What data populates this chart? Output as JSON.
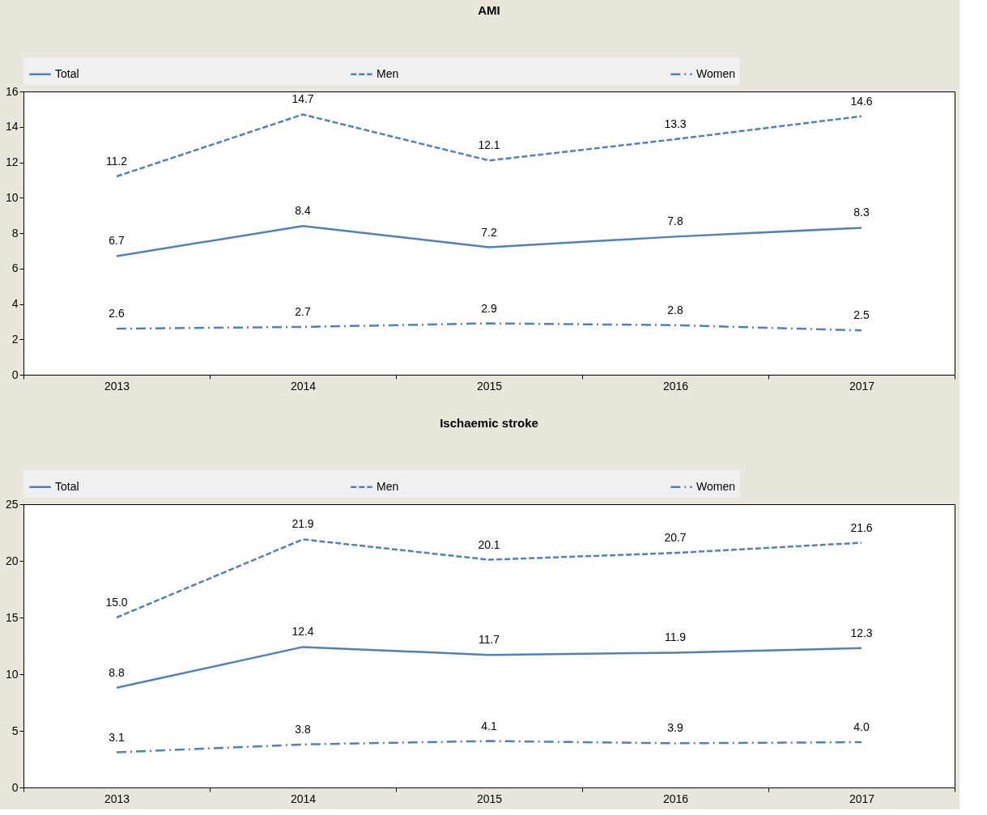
{
  "chart_data": [
    {
      "type": "line",
      "title": "AMI",
      "categories": [
        "2013",
        "2014",
        "2015",
        "2016",
        "2017"
      ],
      "ylim": [
        0,
        16
      ],
      "yticks": [
        0,
        2,
        4,
        6,
        8,
        10,
        12,
        14,
        16
      ],
      "grid": false,
      "legend": "top",
      "marker": "none",
      "series": [
        {
          "name": "Total",
          "color": "#4f81bd",
          "line_style": "solid",
          "values": [
            6.7,
            8.4,
            7.2,
            7.8,
            8.3
          ],
          "value_labels": [
            "6.7",
            "8.4",
            "7.2",
            "7.8",
            "8.3"
          ]
        },
        {
          "name": "Men",
          "color": "#4f81bd",
          "line_style": "dashed",
          "values": [
            11.2,
            14.7,
            12.1,
            13.3,
            14.6
          ],
          "value_labels": [
            "11.2",
            "14.7",
            "12.1",
            "13.3",
            "14.6"
          ]
        },
        {
          "name": "Women",
          "color": "#4f81bd",
          "line_style": "dashdot",
          "values": [
            2.6,
            2.7,
            2.9,
            2.8,
            2.5
          ],
          "value_labels": [
            "2.6",
            "2.7",
            "2.9",
            "2.8",
            "2.5"
          ]
        }
      ]
    },
    {
      "type": "line",
      "title": "Ischaemic stroke",
      "categories": [
        "2013",
        "2014",
        "2015",
        "2016",
        "2017"
      ],
      "ylim": [
        0,
        25
      ],
      "yticks": [
        0,
        5,
        10,
        15,
        20,
        25
      ],
      "grid": false,
      "legend": "top",
      "marker": "none",
      "series": [
        {
          "name": "Total",
          "color": "#4f81bd",
          "line_style": "solid",
          "values": [
            8.8,
            12.4,
            11.7,
            11.9,
            12.3
          ],
          "value_labels": [
            "8.8",
            "12.4",
            "11.7",
            "11.9",
            "12.3"
          ]
        },
        {
          "name": "Men",
          "color": "#4f81bd",
          "line_style": "dashed",
          "values": [
            15.0,
            21.9,
            20.1,
            20.7,
            21.6
          ],
          "value_labels": [
            "15.0",
            "21.9",
            "20.1",
            "20.7",
            "21.6"
          ]
        },
        {
          "name": "Women",
          "color": "#4f81bd",
          "line_style": "dashdot",
          "values": [
            3.1,
            3.8,
            4.1,
            3.9,
            4.0
          ],
          "value_labels": [
            "3.1",
            "3.8",
            "4.1",
            "3.9",
            "4.0"
          ]
        }
      ]
    }
  ]
}
